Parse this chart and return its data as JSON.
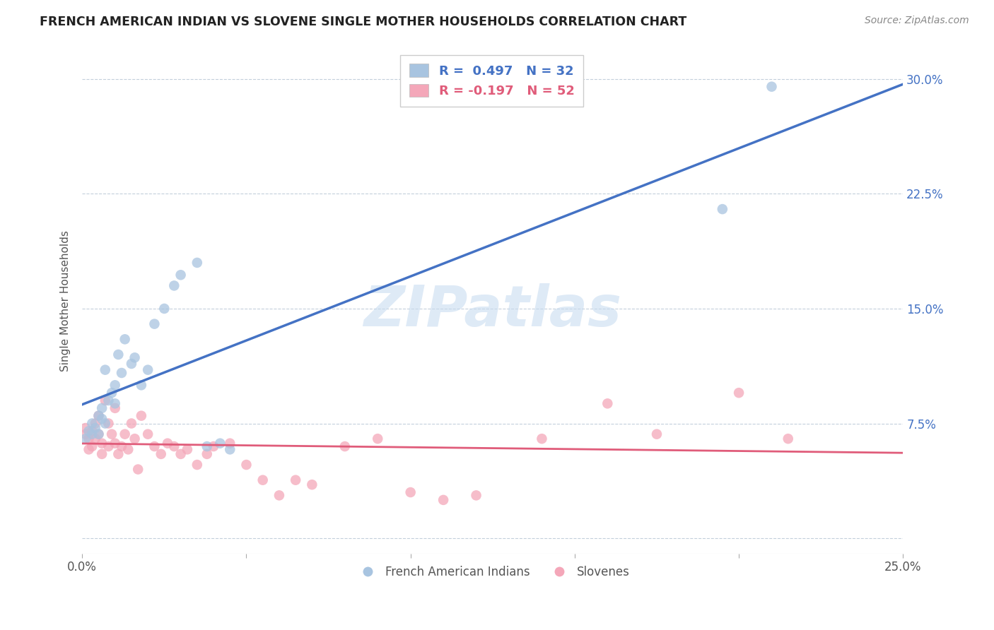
{
  "title": "FRENCH AMERICAN INDIAN VS SLOVENE SINGLE MOTHER HOUSEHOLDS CORRELATION CHART",
  "source": "Source: ZipAtlas.com",
  "ylabel": "Single Mother Households",
  "xlim": [
    0.0,
    0.25
  ],
  "ylim": [
    -0.01,
    0.32
  ],
  "xtick_vals": [
    0.0,
    0.05,
    0.1,
    0.15,
    0.2,
    0.25
  ],
  "xticklabels": [
    "0.0%",
    "",
    "",
    "",
    "",
    "25.0%"
  ],
  "ytick_vals": [
    0.0,
    0.075,
    0.15,
    0.225,
    0.3
  ],
  "yticklabels": [
    "",
    "7.5%",
    "15.0%",
    "22.5%",
    "30.0%"
  ],
  "blue_R": 0.497,
  "blue_N": 32,
  "pink_R": -0.197,
  "pink_N": 52,
  "blue_color": "#A8C4E0",
  "pink_color": "#F4A7B9",
  "blue_line_color": "#4472C4",
  "pink_line_color": "#E05C7A",
  "watermark": "ZIPatlas",
  "blue_x": [
    0.001,
    0.002,
    0.003,
    0.003,
    0.004,
    0.005,
    0.005,
    0.006,
    0.006,
    0.007,
    0.007,
    0.008,
    0.009,
    0.01,
    0.01,
    0.011,
    0.012,
    0.013,
    0.015,
    0.016,
    0.018,
    0.02,
    0.022,
    0.025,
    0.028,
    0.03,
    0.035,
    0.038,
    0.042,
    0.045,
    0.195,
    0.21
  ],
  "blue_y": [
    0.065,
    0.07,
    0.068,
    0.075,
    0.072,
    0.068,
    0.08,
    0.078,
    0.085,
    0.075,
    0.11,
    0.09,
    0.095,
    0.088,
    0.1,
    0.12,
    0.108,
    0.13,
    0.114,
    0.118,
    0.1,
    0.11,
    0.14,
    0.15,
    0.165,
    0.172,
    0.18,
    0.06,
    0.062,
    0.058,
    0.215,
    0.295
  ],
  "pink_x": [
    0.001,
    0.001,
    0.002,
    0.002,
    0.003,
    0.003,
    0.004,
    0.004,
    0.005,
    0.005,
    0.006,
    0.006,
    0.007,
    0.008,
    0.008,
    0.009,
    0.01,
    0.01,
    0.011,
    0.012,
    0.013,
    0.014,
    0.015,
    0.016,
    0.017,
    0.018,
    0.02,
    0.022,
    0.024,
    0.026,
    0.028,
    0.03,
    0.032,
    0.035,
    0.038,
    0.04,
    0.045,
    0.05,
    0.055,
    0.06,
    0.065,
    0.07,
    0.08,
    0.09,
    0.1,
    0.11,
    0.12,
    0.14,
    0.16,
    0.175,
    0.2,
    0.215
  ],
  "pink_y": [
    0.068,
    0.072,
    0.065,
    0.058,
    0.07,
    0.06,
    0.075,
    0.065,
    0.08,
    0.068,
    0.062,
    0.055,
    0.09,
    0.075,
    0.06,
    0.068,
    0.085,
    0.062,
    0.055,
    0.06,
    0.068,
    0.058,
    0.075,
    0.065,
    0.045,
    0.08,
    0.068,
    0.06,
    0.055,
    0.062,
    0.06,
    0.055,
    0.058,
    0.048,
    0.055,
    0.06,
    0.062,
    0.048,
    0.038,
    0.028,
    0.038,
    0.035,
    0.06,
    0.065,
    0.03,
    0.025,
    0.028,
    0.065,
    0.088,
    0.068,
    0.095,
    0.065
  ]
}
